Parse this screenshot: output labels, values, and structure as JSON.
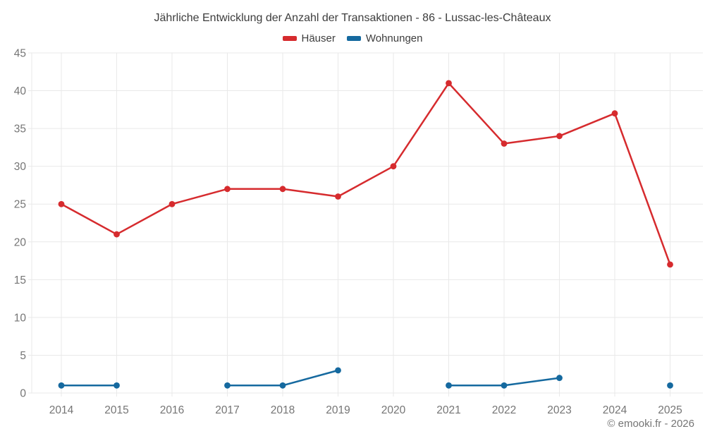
{
  "chart_data": {
    "type": "line",
    "title": "Jährliche Entwicklung der Anzahl der Transaktionen - 86 - Lussac-les-Châteaux",
    "categories": [
      "2014",
      "2015",
      "2016",
      "2017",
      "2018",
      "2019",
      "2020",
      "2021",
      "2022",
      "2023",
      "2024",
      "2025"
    ],
    "series": [
      {
        "name": "Häuser",
        "color": "#d62b2e",
        "values": [
          25,
          21,
          25,
          27,
          27,
          26,
          30,
          41,
          33,
          34,
          37,
          17
        ]
      },
      {
        "name": "Wohnungen",
        "color": "#15699f",
        "values": [
          1,
          1,
          null,
          1,
          1,
          3,
          null,
          1,
          1,
          2,
          null,
          1
        ]
      }
    ],
    "xlabel": "",
    "ylabel": "",
    "ylim": [
      0,
      45
    ],
    "yticks": [
      0,
      5,
      10,
      15,
      20,
      25,
      30,
      35,
      40,
      45
    ],
    "grid": true,
    "legend_position": "top"
  },
  "footer": {
    "copyright": "© emooki.fr - 2026"
  },
  "colors": {
    "grid": "#e9e9e9",
    "axis_label": "#757575",
    "title_text": "#3d3d3d"
  }
}
